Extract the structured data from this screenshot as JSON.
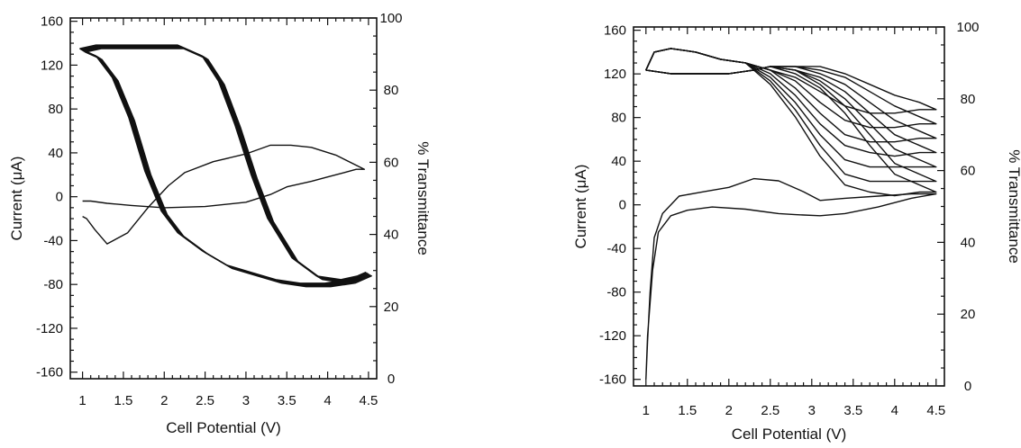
{
  "chart_data": [
    {
      "type": "line",
      "title": "",
      "xlabel": "Cell Potential (V)",
      "ylabel": "Current (μA)",
      "y2label": "% Transmittance",
      "xlim": [
        0.85,
        4.6
      ],
      "ylim": [
        -166,
        163
      ],
      "y2lim": [
        0,
        100
      ],
      "x_ticks": [
        "1",
        "1.5",
        "2",
        "2.5",
        "3",
        "3.5",
        "4",
        "4.5"
      ],
      "y_ticks": [
        "160",
        "120",
        "80",
        "40",
        "0",
        "-40",
        "-80",
        "-120",
        "-160"
      ],
      "y2_ticks": [
        "100",
        "80",
        "60",
        "40",
        "20",
        "0"
      ],
      "grid": false,
      "series": [
        {
          "axis": "current",
          "cycles": 1,
          "x": [
            1.0,
            1.1,
            1.3,
            1.6,
            2.0,
            2.5,
            3.0,
            3.3,
            3.5,
            3.8,
            4.0,
            4.2,
            4.35,
            4.45,
            4.1,
            3.8,
            3.55,
            3.3,
            3.0,
            2.6,
            2.25,
            2.05,
            1.8,
            1.55,
            1.3,
            1.15,
            1.05,
            1.0
          ],
          "y": [
            -4,
            -4,
            -6,
            -8,
            -10,
            -9,
            -5,
            2,
            9,
            14,
            18,
            22,
            25,
            25,
            38,
            45,
            47,
            47,
            39,
            32,
            22,
            10,
            -10,
            -33,
            -43,
            -30,
            -20,
            -18
          ]
        },
        {
          "axis": "transmittance",
          "cycles": 6,
          "x": [
            1.0,
            1.2,
            1.5,
            1.8,
            2.0,
            2.2,
            2.5,
            2.7,
            2.9,
            3.1,
            3.3,
            3.6,
            3.9,
            4.2,
            4.4,
            4.5,
            4.3,
            4.0,
            3.7,
            3.4,
            3.1,
            2.8,
            2.5,
            2.2,
            2.0,
            1.8,
            1.6,
            1.4,
            1.2,
            1.0
          ],
          "y": [
            91,
            92,
            92,
            92,
            92,
            92,
            89,
            82,
            70,
            56,
            44,
            33,
            28,
            27,
            28,
            29,
            27,
            26,
            26,
            27,
            29,
            31,
            35,
            40,
            46,
            57,
            72,
            83,
            89,
            91
          ]
        }
      ]
    },
    {
      "type": "line",
      "title": "",
      "xlabel": "Cell Potential (V)",
      "ylabel": "Current (μA)",
      "y2label": "% Transmittance",
      "xlim": [
        0.85,
        4.6
      ],
      "ylim": [
        -166,
        163
      ],
      "y2lim": [
        0,
        100
      ],
      "x_ticks": [
        "1",
        "1.5",
        "2",
        "2.5",
        "3",
        "3.5",
        "4",
        "4.5"
      ],
      "y_ticks": [
        "160",
        "120",
        "80",
        "40",
        "0",
        "-40",
        "-80",
        "-120",
        "-160"
      ],
      "y2_ticks": [
        "100",
        "80",
        "60",
        "40",
        "20",
        "0"
      ],
      "grid": false,
      "series": [
        {
          "axis": "current",
          "cycles": 1,
          "x": [
            1.0,
            1.02,
            1.08,
            1.15,
            1.3,
            1.5,
            1.8,
            2.2,
            2.4,
            2.6,
            2.8,
            3.1,
            3.4,
            3.8,
            4.2,
            4.5,
            4.2,
            3.8,
            3.4,
            3.1,
            2.9,
            2.6,
            2.3,
            2.0,
            1.7,
            1.4,
            1.2,
            1.1,
            1.05,
            1.02,
            1.0
          ],
          "y": [
            -160,
            -120,
            -60,
            -25,
            -10,
            -5,
            -2,
            -4,
            -6,
            -8,
            -9,
            -10,
            -8,
            -2,
            6,
            10,
            10,
            8,
            6,
            4,
            12,
            22,
            24,
            16,
            12,
            8,
            -8,
            -30,
            -80,
            -125,
            -160
          ]
        },
        {
          "axis": "transmittance",
          "cycles": 1,
          "x": [
            1.0,
            1.3,
            1.7,
            2.0,
            2.3,
            2.5,
            2.8,
            3.1,
            3.4,
            3.7,
            4.0,
            4.3,
            4.5,
            4.3,
            4.0,
            3.7,
            3.4,
            3.1,
            2.8,
            2.5,
            2.2,
            1.9,
            1.6,
            1.3,
            1.1,
            1.0
          ],
          "y": [
            88,
            87,
            87,
            87,
            88,
            89,
            89,
            89,
            87,
            84,
            81,
            79,
            77,
            77,
            76,
            76,
            78,
            82,
            86,
            88,
            90,
            91,
            93,
            94,
            93,
            88
          ]
        },
        {
          "axis": "transmittance",
          "cycles": 1,
          "x": [
            1.0,
            1.3,
            1.7,
            2.0,
            2.3,
            2.5,
            2.8,
            3.1,
            3.4,
            3.7,
            4.0,
            4.3,
            4.5,
            4.3,
            4.0,
            3.7,
            3.4,
            3.1,
            2.8,
            2.5,
            2.2,
            1.9,
            1.6,
            1.3,
            1.1,
            1.0
          ],
          "y": [
            88,
            87,
            87,
            87,
            88,
            89,
            89,
            88,
            86,
            82,
            78,
            75,
            73,
            73,
            72,
            72,
            74,
            79,
            85,
            88,
            90,
            91,
            93,
            94,
            93,
            88
          ]
        },
        {
          "axis": "transmittance",
          "cycles": 1,
          "x": [
            1.0,
            1.3,
            1.7,
            2.0,
            2.3,
            2.5,
            2.8,
            3.1,
            3.4,
            3.7,
            4.0,
            4.3,
            4.5,
            4.3,
            4.0,
            3.7,
            3.4,
            3.1,
            2.8,
            2.5,
            2.2,
            1.9,
            1.6,
            1.3,
            1.1,
            1.0
          ],
          "y": [
            88,
            87,
            87,
            87,
            88,
            89,
            89,
            87,
            84,
            79,
            74,
            71,
            69,
            69,
            68,
            68,
            70,
            76,
            83,
            88,
            90,
            91,
            93,
            94,
            93,
            88
          ]
        },
        {
          "axis": "transmittance",
          "cycles": 1,
          "x": [
            1.0,
            1.3,
            1.7,
            2.0,
            2.3,
            2.5,
            2.8,
            3.1,
            3.4,
            3.7,
            4.0,
            4.3,
            4.5,
            4.3,
            4.0,
            3.7,
            3.4,
            3.1,
            2.8,
            2.5,
            2.2,
            1.9,
            1.6,
            1.3,
            1.1,
            1.0
          ],
          "y": [
            88,
            87,
            87,
            87,
            88,
            89,
            88,
            86,
            82,
            76,
            70,
            67,
            65,
            65,
            64,
            65,
            67,
            73,
            81,
            87,
            90,
            91,
            93,
            94,
            93,
            88
          ]
        },
        {
          "axis": "transmittance",
          "cycles": 1,
          "x": [
            1.0,
            1.3,
            1.7,
            2.0,
            2.3,
            2.5,
            2.8,
            3.1,
            3.4,
            3.7,
            4.0,
            4.3,
            4.5,
            4.3,
            4.0,
            3.7,
            3.4,
            3.1,
            2.8,
            2.5,
            2.2,
            1.9,
            1.6,
            1.3,
            1.1,
            1.0
          ],
          "y": [
            88,
            87,
            87,
            87,
            88,
            89,
            88,
            85,
            80,
            73,
            66,
            63,
            61,
            61,
            61,
            61,
            63,
            70,
            79,
            86,
            90,
            91,
            93,
            94,
            93,
            88
          ]
        },
        {
          "axis": "transmittance",
          "cycles": 1,
          "x": [
            1.0,
            1.3,
            1.7,
            2.0,
            2.3,
            2.5,
            2.8,
            3.1,
            3.4,
            3.7,
            4.0,
            4.3,
            4.5,
            4.3,
            4.0,
            3.7,
            3.4,
            3.1,
            2.8,
            2.5,
            2.2,
            1.9,
            1.6,
            1.3,
            1.1,
            1.0
          ],
          "y": [
            88,
            87,
            87,
            87,
            88,
            89,
            88,
            84,
            78,
            70,
            62,
            59,
            57,
            57,
            57,
            57,
            59,
            67,
            77,
            85,
            90,
            91,
            93,
            94,
            93,
            88
          ]
        },
        {
          "axis": "transmittance",
          "cycles": 1,
          "x": [
            1.0,
            1.3,
            1.7,
            2.0,
            2.3,
            2.5,
            2.8,
            3.1,
            3.4,
            3.7,
            4.0,
            4.3,
            4.5,
            4.3,
            4.0,
            3.7,
            3.4,
            3.1,
            2.8,
            2.5,
            2.2,
            1.9,
            1.6,
            1.3,
            1.1,
            1.0
          ],
          "y": [
            88,
            87,
            87,
            87,
            88,
            89,
            87,
            83,
            76,
            67,
            59,
            56,
            54,
            54,
            53,
            54,
            56,
            64,
            75,
            84,
            90,
            91,
            93,
            94,
            93,
            88
          ]
        }
      ]
    }
  ]
}
